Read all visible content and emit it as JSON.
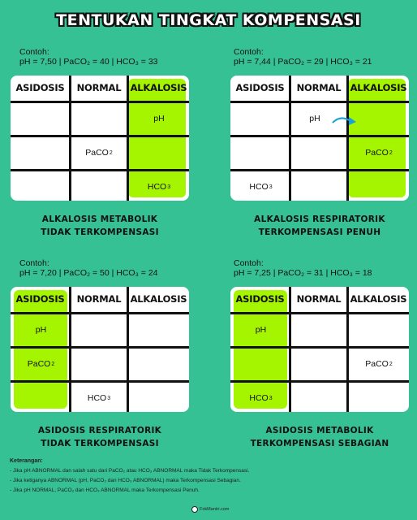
{
  "title": "TENTUKAN TINGKAT KOMPENSASI",
  "headers": [
    "ASIDOSIS",
    "NORMAL",
    "ALKALOSIS"
  ],
  "labels": {
    "ph": "pH",
    "paco2": "PaCO",
    "hco3": "HCO",
    "sub2": "2",
    "sub3": "3"
  },
  "panels": [
    {
      "example_label": "Contoh:",
      "example_values": "pH = 7,50 | PaCO₂ = 40 | HCO₃ = 33",
      "highlight": "ALKALOSIS",
      "caption_line1": "ALKALOSIS METABOLIK",
      "caption_line2": "TIDAK TERKOMPENSASI"
    },
    {
      "example_label": "Contoh:",
      "example_values": "pH = 7,44 | PaCO₂ = 29 | HCO₃ = 21",
      "highlight": "ALKALOSIS",
      "caption_line1": "ALKALOSIS RESPIRATORIK",
      "caption_line2": "TERKOMPENSASI PENUH"
    },
    {
      "example_label": "Contoh:",
      "example_values": "pH = 7,20 | PaCO₂ = 50 | HCO₃ = 24",
      "highlight": "ASIDOSIS",
      "caption_line1": "ASIDOSIS RESPIRATORIK",
      "caption_line2": "TIDAK TERKOMPENSASI"
    },
    {
      "example_label": "Contoh:",
      "example_values": "pH = 7,25 | PaCO₂ = 31 | HCO₃ = 18",
      "highlight": "ASIDOSIS",
      "caption_line1": "ASIDOSIS METABOLIK",
      "caption_line2": "TERKOMPENSASI SEBAGIAN"
    }
  ],
  "notes": {
    "title": "Keterangan:",
    "items": [
      "- Jika pH ABNORMAL dan salah satu dari PaCO₂ atau HCO₃ ABNORMAL maka Tidak Terkompensasi.",
      "- Jika ketiganya ABNORMAL (pH, PaCO₂ dan HCO₃ ABNORMAL) maka Terkompensasi Sebagian.",
      "- Jika pH NORMAL, PaCO₂ dan HCO₃ ABNORMAL maka Terkompensasi Penuh."
    ]
  },
  "footer": "FokMantri.com",
  "colors": {
    "background": "#36c195",
    "highlight": "#a6f500",
    "arrow": "#1aa0d8"
  }
}
